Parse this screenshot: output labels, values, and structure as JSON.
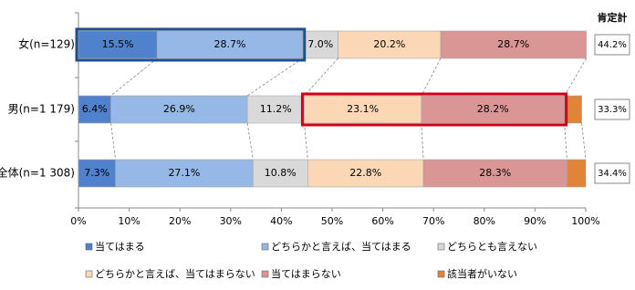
{
  "chart_data": {
    "type": "stacked-barh",
    "categories": [
      "女(n=129)",
      "男(n=1 179)",
      "全体(n=1 308)"
    ],
    "series": [
      {
        "name": "当てはまる",
        "color": "#4f81cd",
        "values": [
          15.5,
          6.4,
          7.3
        ],
        "value_labels": [
          "15.5%",
          "6.4%",
          "7.3%"
        ]
      },
      {
        "name": "どちらかと言えば、当てはまる",
        "color": "#95b8e6",
        "values": [
          28.7,
          26.9,
          27.1
        ],
        "value_labels": [
          "28.7%",
          "26.9%",
          "27.1%"
        ]
      },
      {
        "name": "どちらとも言えない",
        "color": "#d9d9d9",
        "values": [
          7.0,
          11.2,
          10.8
        ],
        "value_labels": [
          "7.0%",
          "11.2%",
          "10.8%"
        ]
      },
      {
        "name": "どちらかと言えば、当てはまらない",
        "color": "#fcd7b6",
        "values": [
          20.2,
          23.1,
          22.8
        ],
        "value_labels": [
          "20.2%",
          "23.1%",
          "22.8%"
        ]
      },
      {
        "name": "当てはまらない",
        "color": "#d99695",
        "values": [
          28.7,
          28.2,
          28.3
        ],
        "value_labels": [
          "28.7%",
          "28.2%",
          "28.3%"
        ]
      },
      {
        "name": "該当者がいない",
        "color": "#e0843a",
        "values": [
          null,
          3.4,
          3.7
        ]
      }
    ],
    "xlim": [
      0,
      100
    ],
    "xticks": [
      {
        "value": 0,
        "label": "0%"
      },
      {
        "value": 10,
        "label": "10%"
      },
      {
        "value": 20,
        "label": "20%"
      },
      {
        "value": 30,
        "label": "30%"
      },
      {
        "value": 40,
        "label": "40%"
      },
      {
        "value": 50,
        "label": "50%"
      },
      {
        "value": 60,
        "label": "60%"
      },
      {
        "value": 70,
        "label": "70%"
      },
      {
        "value": 80,
        "label": "80%"
      },
      {
        "value": 90,
        "label": "90%"
      },
      {
        "value": 100,
        "label": "100%"
      }
    ],
    "summary_title": "肯定計",
    "summary": [
      {
        "value": 44.2,
        "label": "44.2%"
      },
      {
        "value": 33.3,
        "label": "33.3%"
      },
      {
        "value": 34.4,
        "label": "34.4%"
      }
    ]
  }
}
